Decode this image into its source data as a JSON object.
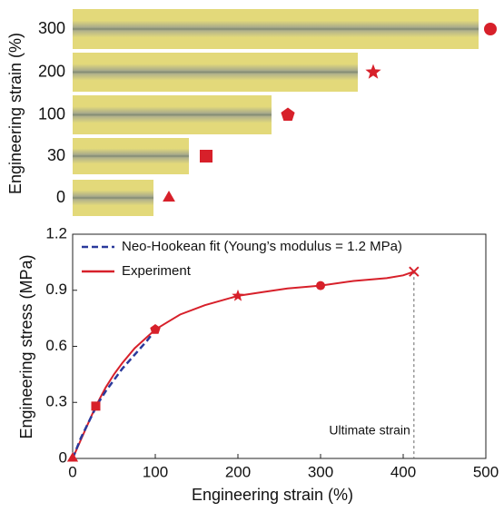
{
  "photos": {
    "ylabel": "Engineering strain (%)",
    "labels": [
      300,
      200,
      100,
      30,
      0
    ]
  },
  "chart_data": {
    "type": "line",
    "xlabel": "Engineering strain (%)",
    "ylabel": "Engineering stress (MPa)",
    "xlim": [
      0,
      500
    ],
    "ylim": [
      0,
      1.2
    ],
    "xticks": [
      0,
      100,
      200,
      300,
      400,
      500
    ],
    "yticks": [
      0,
      0.3,
      0.6,
      0.9,
      1.2
    ],
    "legend": "upper left",
    "series": [
      {
        "name": "Neo-Hookean fit (Young’s modulus = 1.2 MPa)",
        "color": "#2b3a9c",
        "dashed": true,
        "x": [
          0,
          10,
          20,
          30,
          40,
          50,
          60,
          70,
          80,
          90,
          97
        ],
        "values": [
          0,
          0.11,
          0.2,
          0.29,
          0.36,
          0.42,
          0.48,
          0.53,
          0.58,
          0.63,
          0.67
        ]
      },
      {
        "name": "Experiment",
        "color": "#d7202a",
        "dashed": false,
        "x": [
          0,
          10,
          20,
          28,
          40,
          50,
          60,
          75,
          90,
          100,
          115,
          130,
          160,
          200,
          230,
          260,
          300,
          340,
          380,
          400,
          413
        ],
        "values": [
          0,
          0.1,
          0.2,
          0.28,
          0.38,
          0.45,
          0.51,
          0.59,
          0.65,
          0.69,
          0.73,
          0.77,
          0.82,
          0.87,
          0.89,
          0.91,
          0.925,
          0.95,
          0.965,
          0.98,
          1.0
        ]
      }
    ],
    "points": {
      "color": "#d7202a",
      "x": [
        0,
        28,
        100,
        200,
        300,
        413
      ],
      "y": [
        0,
        0.28,
        0.69,
        0.87,
        0.925,
        1.0
      ]
    },
    "annotation": {
      "text": "Ultimate strain",
      "x": 413
    }
  }
}
